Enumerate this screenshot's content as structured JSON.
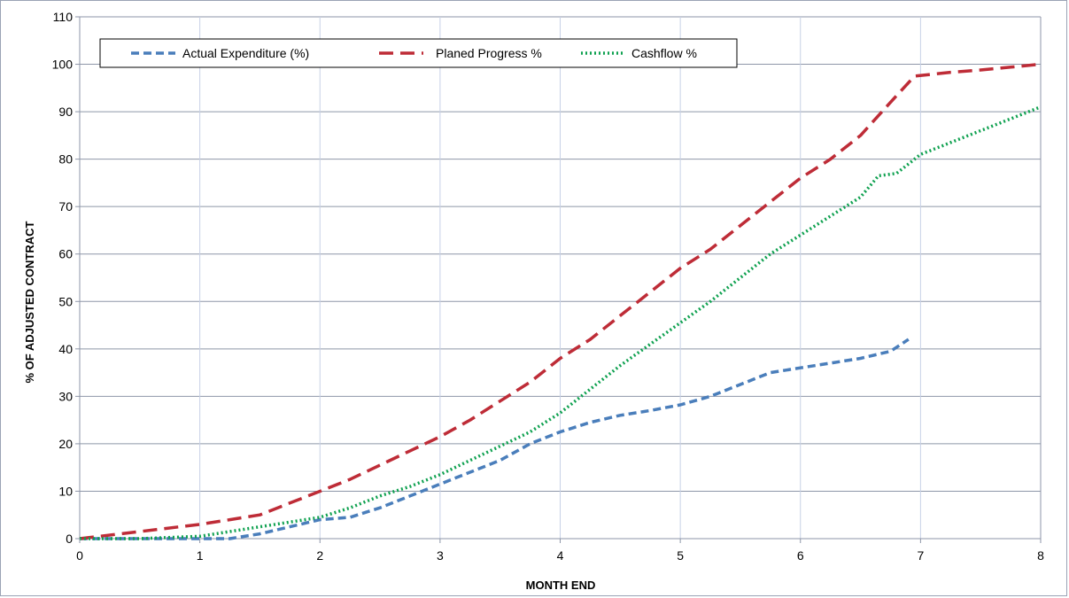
{
  "chart_data": {
    "type": "line",
    "title": "",
    "xlabel": "MONTH END",
    "ylabel": "% OF ADJUSTED CONTRACT",
    "xlim": [
      0,
      8
    ],
    "ylim": [
      0,
      110
    ],
    "xticks": [
      0,
      1,
      2,
      3,
      4,
      5,
      6,
      7,
      8
    ],
    "yticks": [
      0,
      10,
      20,
      30,
      40,
      50,
      60,
      70,
      80,
      90,
      100,
      110
    ],
    "grid": "horizontal and vertical",
    "legend_position": "top-left",
    "series": [
      {
        "name": "Actual Expenditure (%)",
        "color": "#4a7ebb",
        "dash": "dashed",
        "x": [
          0,
          0.5,
          1.0,
          1.25,
          1.5,
          1.75,
          2.0,
          2.25,
          2.5,
          2.75,
          3.0,
          3.25,
          3.5,
          3.75,
          4.0,
          4.25,
          4.5,
          4.75,
          5.0,
          5.25,
          5.5,
          5.75,
          6.0,
          6.25,
          6.5,
          6.75,
          6.9
        ],
        "y": [
          0,
          0,
          0,
          0,
          1,
          2.5,
          4,
          4.5,
          6.5,
          9,
          11.5,
          14,
          16.5,
          20,
          22.5,
          24.5,
          26,
          27,
          28.2,
          30,
          32.5,
          35,
          36,
          37,
          38,
          39.5,
          42
        ]
      },
      {
        "name": "Planed Progress %",
        "color": "#be2c37",
        "dash": "long-dashed",
        "x": [
          0,
          0.5,
          1.0,
          1.25,
          1.5,
          1.75,
          2.0,
          2.25,
          2.5,
          2.75,
          3.0,
          3.25,
          3.5,
          3.75,
          4.0,
          4.25,
          4.5,
          4.75,
          5.0,
          5.25,
          5.5,
          5.75,
          6.0,
          6.25,
          6.5,
          6.75,
          6.95,
          7.25,
          7.5,
          7.75,
          8.0
        ],
        "y": [
          0,
          1.5,
          3,
          4,
          5,
          7.5,
          10,
          12.5,
          15.5,
          18.5,
          21.5,
          25,
          29,
          33,
          38,
          42,
          47,
          52,
          57,
          61,
          66,
          71,
          76,
          80,
          85,
          92,
          97.5,
          98.3,
          98.8,
          99.4,
          100
        ]
      },
      {
        "name": "Cashflow %",
        "color": "#0fa150",
        "dash": "dotted",
        "x": [
          0,
          0.5,
          1.0,
          1.25,
          1.5,
          1.75,
          2.0,
          2.25,
          2.5,
          2.75,
          3.0,
          3.25,
          3.5,
          3.75,
          4.0,
          4.25,
          4.5,
          4.75,
          5.0,
          5.25,
          5.5,
          5.75,
          6.0,
          6.25,
          6.5,
          6.65,
          6.8,
          7.0,
          7.25,
          7.5,
          7.75,
          8.0
        ],
        "y": [
          0,
          0,
          0.5,
          1.5,
          2.5,
          3.5,
          4.5,
          6.5,
          9,
          11,
          13.5,
          16.5,
          19.5,
          22.5,
          26.5,
          31.5,
          36.5,
          41,
          45.5,
          50,
          55,
          60,
          64,
          68,
          72,
          76.5,
          77,
          81,
          83.5,
          86,
          88.5,
          91
        ]
      }
    ]
  }
}
